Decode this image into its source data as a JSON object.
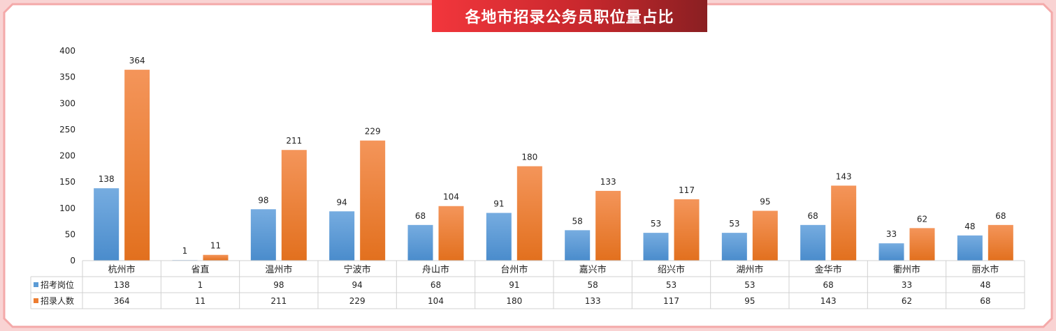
{
  "chart_data": {
    "type": "bar",
    "title": "各地市招录公务员职位量占比",
    "categories": [
      "杭州市",
      "省直",
      "温州市",
      "宁波市",
      "舟山市",
      "台州市",
      "嘉兴市",
      "绍兴市",
      "湖州市",
      "金华市",
      "衢州市",
      "丽水市"
    ],
    "series": [
      {
        "name": "招考岗位",
        "values": [
          138,
          1,
          98,
          94,
          68,
          91,
          58,
          53,
          53,
          68,
          33,
          48
        ],
        "color": "#5b9bd5"
      },
      {
        "name": "招录人数",
        "values": [
          364,
          11,
          211,
          229,
          104,
          180,
          133,
          117,
          95,
          143,
          62,
          68
        ],
        "color": "#ed7d31"
      }
    ],
    "yticks": [
      0,
      50,
      100,
      150,
      200,
      250,
      300,
      350,
      400
    ],
    "ylim": [
      0,
      400
    ],
    "grid": false,
    "legend": "data-table"
  }
}
